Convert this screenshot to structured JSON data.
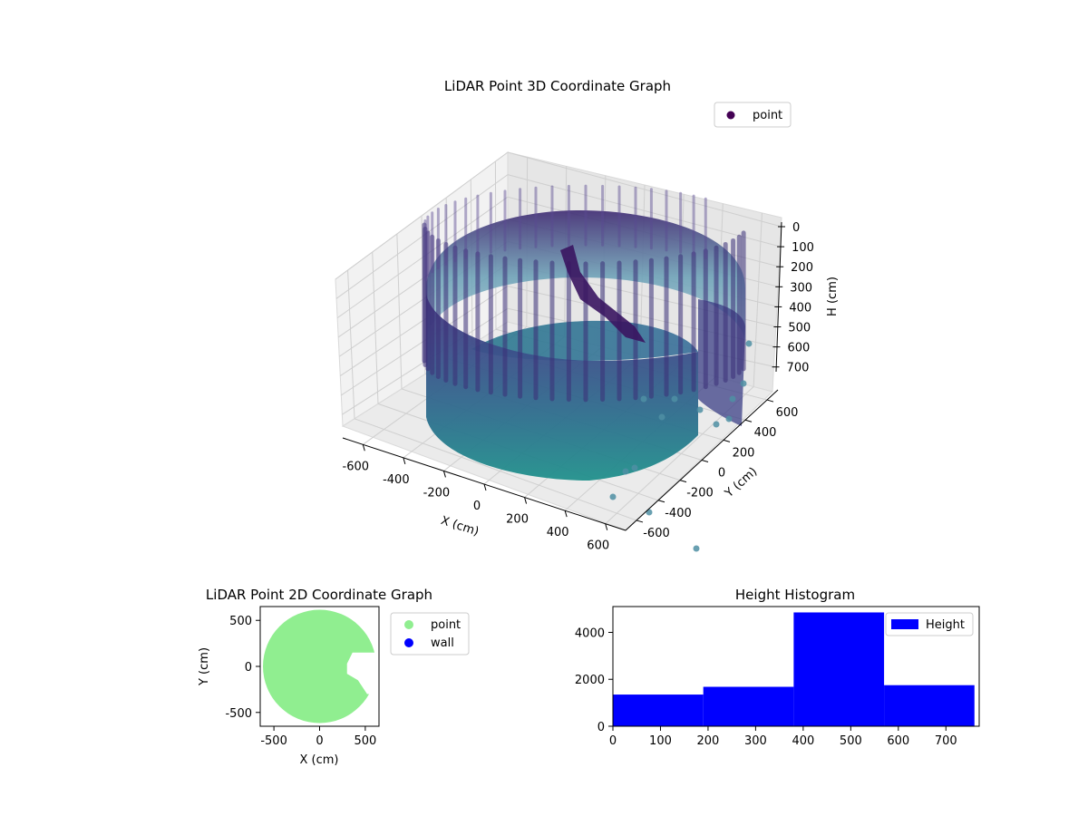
{
  "chart_data": [
    {
      "type": "scatter",
      "projection": "3d",
      "title": "LiDAR Point 3D Coordinate Graph",
      "xlabel": "X (cm)",
      "ylabel": "Y (cm)",
      "zlabel": "H (cm)",
      "xlim": [
        -700,
        700
      ],
      "ylim": [
        -700,
        700
      ],
      "zlim": [
        0,
        760
      ],
      "zaxis_inverted": true,
      "xticks": [
        -600,
        -400,
        -200,
        0,
        200,
        400,
        600
      ],
      "yticks": [
        -600,
        -400,
        -200,
        0,
        200,
        400,
        600
      ],
      "zticks": [
        0,
        100,
        200,
        300,
        400,
        500,
        600,
        700
      ],
      "colormap": "viridis",
      "legend": {
        "entries": [
          "point"
        ],
        "placement": "upper-right",
        "marker_color": "#440154"
      },
      "wall": {
        "shape": "cylinder",
        "radius_cm": 620,
        "height_range_cm": [
          0,
          740
        ],
        "gap_angle_deg": [
          -40,
          5
        ]
      },
      "grid": true
    },
    {
      "type": "scatter",
      "title": "LiDAR Point 2D Coordinate Graph",
      "xlabel": "X (cm)",
      "ylabel": "Y (cm)",
      "xlim": [
        -650,
        650
      ],
      "ylim": [
        -650,
        650
      ],
      "xticks": [
        -500,
        0,
        500
      ],
      "yticks": [
        -500,
        0,
        500
      ],
      "series": [
        {
          "name": "point",
          "color": "#90ee90",
          "shape": "disk",
          "radius_cm": 620,
          "notch": [
            [
              620,
              150
            ],
            [
              360,
              150
            ],
            [
              300,
              30
            ],
            [
              300,
              -80
            ],
            [
              420,
              -150
            ],
            [
              520,
              -300
            ],
            [
              620,
              -300
            ]
          ]
        },
        {
          "name": "wall",
          "color": "#0000ff"
        }
      ],
      "legend": {
        "placement": "outside-right"
      }
    },
    {
      "type": "bar",
      "title": "Height Histogram",
      "xlabel": "",
      "ylabel": "",
      "bins": [
        {
          "from": 0,
          "to": 190,
          "count": 1350
        },
        {
          "from": 190,
          "to": 380,
          "count": 1680
        },
        {
          "from": 380,
          "to": 570,
          "count": 4850
        },
        {
          "from": 570,
          "to": 760,
          "count": 1750
        }
      ],
      "xlim": [
        0,
        770
      ],
      "ylim": [
        0,
        5100
      ],
      "xticks": [
        0,
        100,
        200,
        300,
        400,
        500,
        600,
        700
      ],
      "yticks": [
        0,
        2000,
        4000
      ],
      "color": "#0000ff",
      "legend": {
        "entries": [
          "Height"
        ],
        "placement": "upper-right"
      }
    }
  ]
}
